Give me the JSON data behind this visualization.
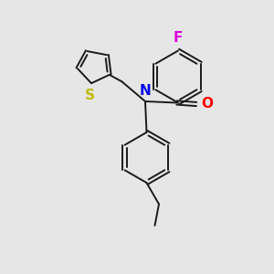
{
  "background_color": "#e6e6e6",
  "bond_color": "#1a1a1a",
  "atom_colors": {
    "F": "#dd00dd",
    "O": "#ff0000",
    "N": "#0000ee",
    "S": "#bbbb00"
  },
  "figsize": [
    3.0,
    3.0
  ],
  "dpi": 100
}
